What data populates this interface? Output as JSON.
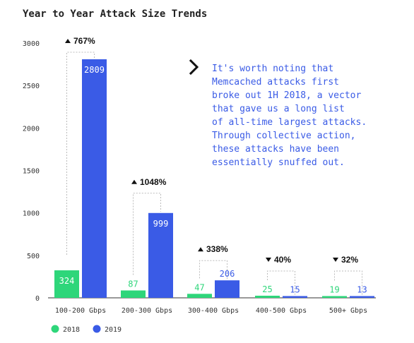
{
  "chart_data": {
    "type": "bar",
    "title": "Year to Year Attack Size Trends",
    "categories": [
      "100-200 Gbps",
      "200-300 Gbps",
      "300-400 Gbps",
      "400-500 Gbps",
      "500+ Gbps"
    ],
    "series": [
      {
        "name": "2018",
        "color": "#2ed67a",
        "values": [
          324,
          87,
          47,
          25,
          19
        ]
      },
      {
        "name": "2019",
        "color": "#3a5be6",
        "values": [
          2809,
          999,
          206,
          15,
          13
        ]
      }
    ],
    "changes": [
      {
        "direction": "up",
        "label": "767%"
      },
      {
        "direction": "up",
        "label": "1048%"
      },
      {
        "direction": "up",
        "label": "338%"
      },
      {
        "direction": "down",
        "label": "40%"
      },
      {
        "direction": "down",
        "label": "32%"
      }
    ],
    "ylim": [
      0,
      3000
    ],
    "yticks": [
      0,
      500,
      1000,
      1500,
      2000,
      2500,
      3000
    ],
    "grid": false,
    "legend_position": "bottom-left",
    "annotation": {
      "icon": "chevron-right-icon",
      "lines": [
        "It's worth noting that",
        "Memcached attacks first",
        "broke out 1H 2018, a vector",
        "that gave us a long list",
        "of all-time largest attacks.",
        "Through collective action,",
        "these attacks have been",
        "essentially snuffed out."
      ],
      "color": "#3a5be6"
    }
  }
}
